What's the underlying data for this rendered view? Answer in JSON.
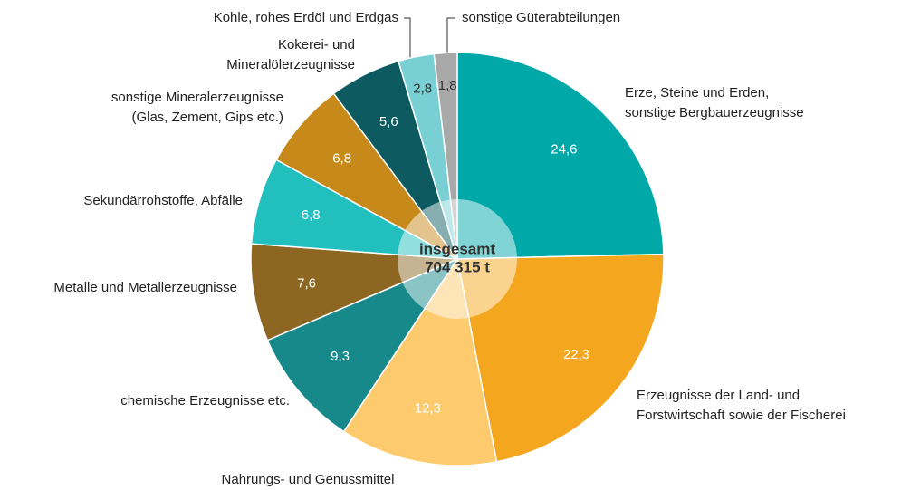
{
  "chart_data": {
    "type": "pie",
    "categories": [
      "Erze, Steine und Erden,\nsonstige Bergbauerzeugnisse",
      "Erzeugnisse der Land- und\nForstwirtschaft sowie der Fischerei",
      "Nahrungs- und Genussmittel",
      "chemische Erzeugnisse etc.",
      "Metalle und Metallerzeugnisse",
      "Sekundärrohstoffe, Abfälle",
      "sonstige Mineralerzeugnisse\n(Glas, Zement, Gips etc.)",
      "Kokerei- und\nMineralölerzeugnisse",
      "Kohle, rohes Erdöl und Erdgas",
      "sonstige Güterabteilungen"
    ],
    "values": [
      24.6,
      22.3,
      12.3,
      9.3,
      7.6,
      6.8,
      6.8,
      5.6,
      2.8,
      1.8
    ],
    "value_labels": [
      "24,6",
      "22,3",
      "12,3",
      "9,3",
      "7,6",
      "6,8",
      "6,8",
      "5,6",
      "2,8",
      "1,8"
    ],
    "colors": [
      "#00a8a8",
      "#f5a61f",
      "#fdca6e",
      "#17898a",
      "#8d6722",
      "#22bfbf",
      "#c8891b",
      "#0d5b60",
      "#78d0d4",
      "#a8a8a8"
    ],
    "center_label": [
      "insgesamt",
      "704 315 t"
    ]
  }
}
